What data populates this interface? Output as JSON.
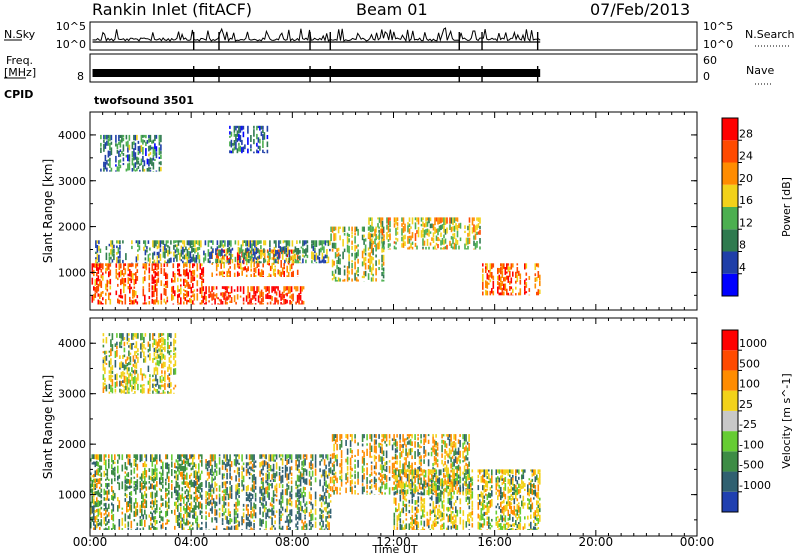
{
  "header": {
    "station": "Rankin Inlet (fitACF)",
    "beam": "Beam 01",
    "date": "07/Feb/2013"
  },
  "strip": {
    "nsky_label": "N.Sky",
    "nsearch_label": "N.Search",
    "nsky_ticks_left": [
      "10^5",
      "10^0"
    ],
    "nsky_ticks_right": [
      "10^5",
      "10^0"
    ],
    "freq_label": "Freq.",
    "freq_unit": "[MHz]",
    "freq_tick_left": "8",
    "nave_label": "Nave",
    "nave_ticks_right": [
      "60",
      "0"
    ],
    "cpid_label": "CPID",
    "cpid_value": "twofsound 3501"
  },
  "chart_data": [
    {
      "type": "heatmap",
      "panel": "power",
      "ylabel": "Slant Range [km]",
      "ylim": [
        180,
        4500
      ],
      "yticks": [
        1000,
        2000,
        3000,
        4000
      ],
      "xlim": [
        0,
        24
      ],
      "colorbar": {
        "label": "Power [dB]",
        "ticks": [
          "28",
          "24",
          "20",
          "16",
          "12",
          "8",
          "4"
        ],
        "colors": [
          "#0000ff",
          "#1f3fa8",
          "#2f7a4f",
          "#4caf50",
          "#f2d21a",
          "#ff8c00",
          "#ff4a00",
          "#ff0000"
        ]
      },
      "data_extent_hours": [
        0.1,
        17.8
      ],
      "regions": [
        {
          "t": [
            0.0,
            4.5
          ],
          "r": [
            300,
            1200
          ],
          "level": 26
        },
        {
          "t": [
            4.5,
            8.5
          ],
          "r": [
            300,
            700
          ],
          "level": 27
        },
        {
          "t": [
            4.8,
            8.2
          ],
          "r": [
            900,
            1500
          ],
          "level": 24
        },
        {
          "t": [
            0.2,
            9.5
          ],
          "r": [
            1200,
            1700
          ],
          "level": 12
        },
        {
          "t": [
            9.5,
            11.8
          ],
          "r": [
            800,
            2000
          ],
          "level": 16
        },
        {
          "t": [
            11.0,
            15.5
          ],
          "r": [
            1500,
            2200
          ],
          "level": 18
        },
        {
          "t": [
            15.5,
            17.8
          ],
          "r": [
            500,
            1200
          ],
          "level": 25
        },
        {
          "t": [
            0.4,
            3.0
          ],
          "r": [
            3200,
            4000
          ],
          "level": 10
        },
        {
          "t": [
            5.5,
            7.0
          ],
          "r": [
            3600,
            4200
          ],
          "level": 8
        }
      ]
    },
    {
      "type": "heatmap",
      "panel": "velocity",
      "ylabel": "Slant Range [km]",
      "xlabel": "Time UT",
      "ylim": [
        180,
        4500
      ],
      "yticks": [
        1000,
        2000,
        3000,
        4000
      ],
      "xlim": [
        0,
        24
      ],
      "xticks": [
        "00:00",
        "04:00",
        "08:00",
        "12:00",
        "16:00",
        "20:00",
        "00:00"
      ],
      "colorbar": {
        "label": "Velocity [m s^-1]",
        "ticks": [
          "1000",
          "500",
          "100",
          "25",
          "-25",
          "-100",
          "-500",
          "-1000"
        ],
        "colors": [
          "#2040b0",
          "#306070",
          "#3d8c45",
          "#66cc33",
          "#c8c8c8",
          "#f2d21a",
          "#ff8c00",
          "#ff4a00",
          "#ff0000"
        ]
      },
      "data_extent_hours": [
        0.1,
        17.8
      ],
      "regions": [
        {
          "t": [
            0.0,
            4.5
          ],
          "r": [
            300,
            1800
          ],
          "level": 100
        },
        {
          "t": [
            4.5,
            9.5
          ],
          "r": [
            300,
            1800
          ],
          "level": 500
        },
        {
          "t": [
            9.5,
            15.0
          ],
          "r": [
            1000,
            2200
          ],
          "level": -500
        },
        {
          "t": [
            12.0,
            17.8
          ],
          "r": [
            300,
            1500
          ],
          "level": -100
        },
        {
          "t": [
            0.5,
            3.5
          ],
          "r": [
            3000,
            4200
          ],
          "level": -100
        }
      ]
    }
  ]
}
